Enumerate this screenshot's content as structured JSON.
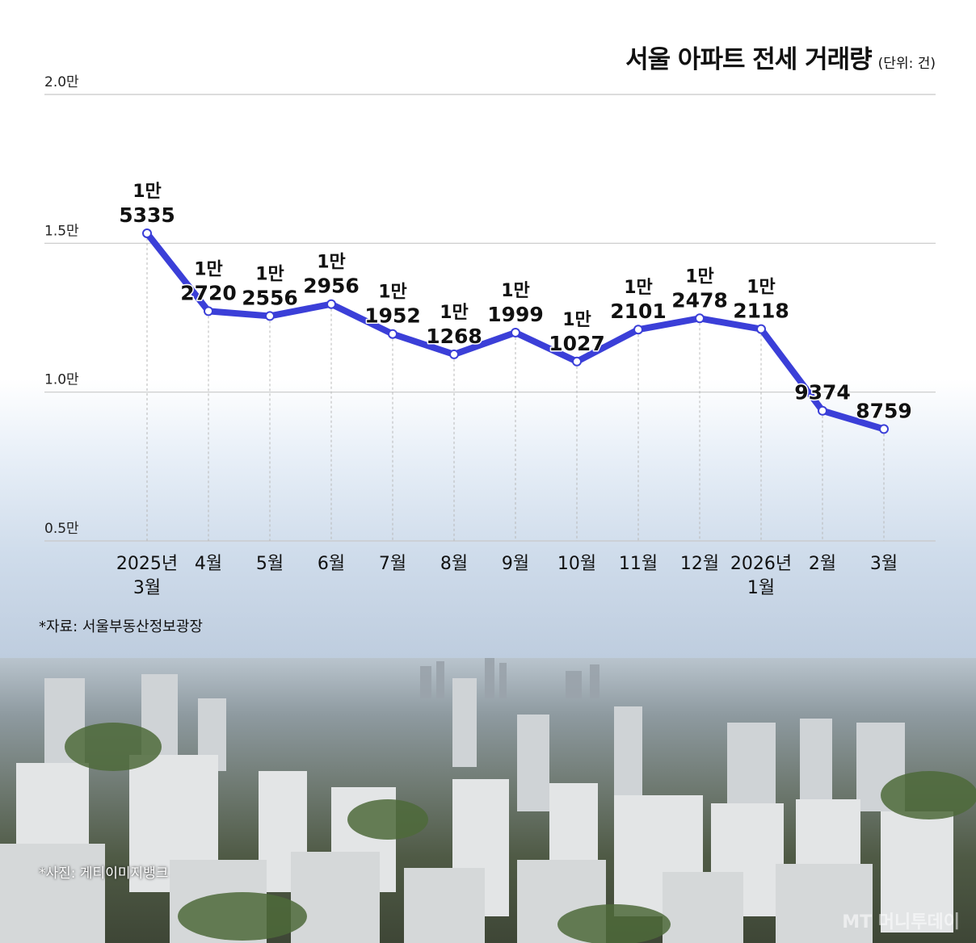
{
  "header": {
    "title": "서울 아파트 전세 거래량",
    "unit": "(단위: 건)"
  },
  "source_note": "*자료: 서울부동산정보광장",
  "photo_credit": "*사진: 게티이미지뱅크",
  "watermark": "MT 머니투데이",
  "colors": {
    "line": "#3b3fd8",
    "grid": "#c8c8c8",
    "text": "#111111"
  },
  "chart_data": {
    "type": "line",
    "title": "서울 아파트 전세 거래량",
    "unit": "건",
    "categories": [
      "2025년\n3월",
      "4월",
      "5월",
      "6월",
      "7월",
      "8월",
      "9월",
      "10월",
      "11월",
      "12월",
      "2026년\n1월",
      "2월",
      "3월"
    ],
    "values": [
      15335,
      12720,
      12556,
      12956,
      11952,
      11268,
      11999,
      11027,
      12101,
      12478,
      12118,
      9374,
      8759
    ],
    "value_labels": [
      [
        "1만",
        "5335"
      ],
      [
        "1만",
        "2720"
      ],
      [
        "1만",
        "2556"
      ],
      [
        "1만",
        "2956"
      ],
      [
        "1만",
        "1952"
      ],
      [
        "1만",
        "1268"
      ],
      [
        "1만",
        "1999"
      ],
      [
        "1만",
        "1027"
      ],
      [
        "1만",
        "2101"
      ],
      [
        "1만",
        "2478"
      ],
      [
        "1만",
        "2118"
      ],
      [
        "",
        "9374"
      ],
      [
        "",
        "8759"
      ]
    ],
    "y_ticks": [
      20000,
      15000,
      10000,
      5000
    ],
    "y_tick_labels": [
      "2.0만",
      "1.5만",
      "1.0만",
      "0.5만"
    ],
    "ylim": [
      5000,
      20000
    ],
    "grid": true
  }
}
